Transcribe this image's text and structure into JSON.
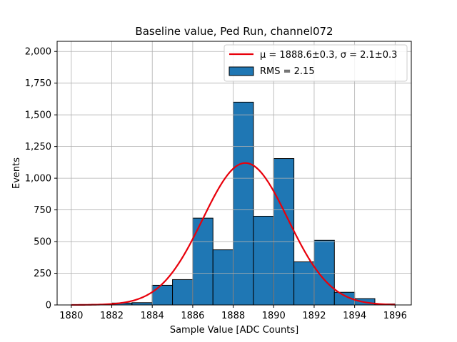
{
  "chart_data": {
    "type": "bar",
    "title": "Baseline value, Ped Run, channel072",
    "xlabel": "Sample Value [ADC Counts]",
    "ylabel": "Events",
    "xlim": [
      1879.3,
      1896.8
    ],
    "ylim": [
      0,
      2080
    ],
    "xticks": [
      1880,
      1882,
      1884,
      1886,
      1888,
      1890,
      1892,
      1894,
      1896
    ],
    "yticks": [
      0,
      250,
      500,
      750,
      1000,
      1250,
      1500,
      1750,
      2000
    ],
    "grid": true,
    "legend_position": "top-right",
    "colors": {
      "bar_fill": "#1f77b4",
      "bar_edge": "#000000",
      "fit_line": "#e8000b",
      "grid": "#b0b0b0"
    },
    "histogram": {
      "name": "RMS = 2.15",
      "bins": [
        {
          "x0": 1880.0,
          "x1": 1881.0,
          "value": 2
        },
        {
          "x0": 1881.0,
          "x1": 1882.0,
          "value": 5
        },
        {
          "x0": 1882.0,
          "x1": 1883.0,
          "value": 15
        },
        {
          "x0": 1883.0,
          "x1": 1884.0,
          "value": 18
        },
        {
          "x0": 1884.0,
          "x1": 1885.0,
          "value": 155
        },
        {
          "x0": 1885.0,
          "x1": 1886.0,
          "value": 200
        },
        {
          "x0": 1886.0,
          "x1": 1887.0,
          "value": 685
        },
        {
          "x0": 1887.0,
          "x1": 1888.0,
          "value": 435
        },
        {
          "x0": 1888.0,
          "x1": 1889.0,
          "value": 1600
        },
        {
          "x0": 1889.0,
          "x1": 1890.0,
          "value": 700
        },
        {
          "x0": 1890.0,
          "x1": 1891.0,
          "value": 1155
        },
        {
          "x0": 1891.0,
          "x1": 1892.0,
          "value": 340
        },
        {
          "x0": 1892.0,
          "x1": 1893.0,
          "value": 510
        },
        {
          "x0": 1893.0,
          "x1": 1894.0,
          "value": 100
        },
        {
          "x0": 1894.0,
          "x1": 1895.0,
          "value": 50
        },
        {
          "x0": 1895.0,
          "x1": 1896.0,
          "value": 8
        }
      ]
    },
    "fit": {
      "name_prefix": "μ = 1888.6±0.3, σ = 2.1±0.3",
      "mu": 1888.6,
      "sigma": 2.1,
      "amplitude": 1120,
      "x_range": [
        1880,
        1896
      ]
    },
    "legend": [
      {
        "label": "μ = 1888.6±0.3, σ = 2.1±0.3",
        "kind": "line"
      },
      {
        "label": "RMS = 2.15",
        "kind": "patch"
      }
    ]
  }
}
